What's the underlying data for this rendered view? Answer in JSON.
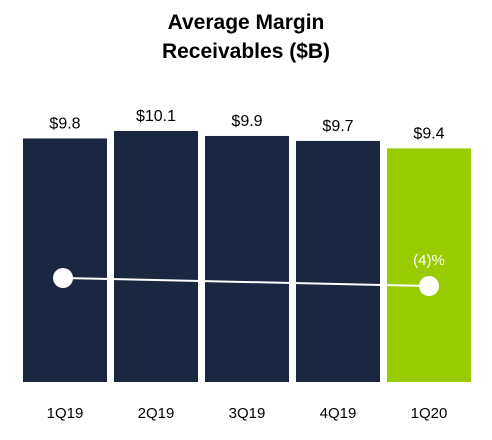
{
  "chart_data": {
    "type": "bar",
    "title_lines": [
      "Average Margin",
      "Receivables ($B)"
    ],
    "categories": [
      "1Q19",
      "2Q19",
      "3Q19",
      "4Q19",
      "1Q20"
    ],
    "values": [
      9.8,
      10.1,
      9.9,
      9.7,
      9.4
    ],
    "value_labels": [
      "$9.8",
      "$10.1",
      "$9.9",
      "$9.7",
      "$9.4"
    ],
    "colors": [
      "#1b2640",
      "#1b2640",
      "#1b2640",
      "#1b2640",
      "#99cc00"
    ],
    "ylim": [
      0,
      10.1
    ],
    "trend_annotation": {
      "from_category": "1Q19",
      "to_category": "1Q20",
      "label": "(4)%",
      "color": "#ffffff"
    },
    "grid": false,
    "legend": "none"
  }
}
